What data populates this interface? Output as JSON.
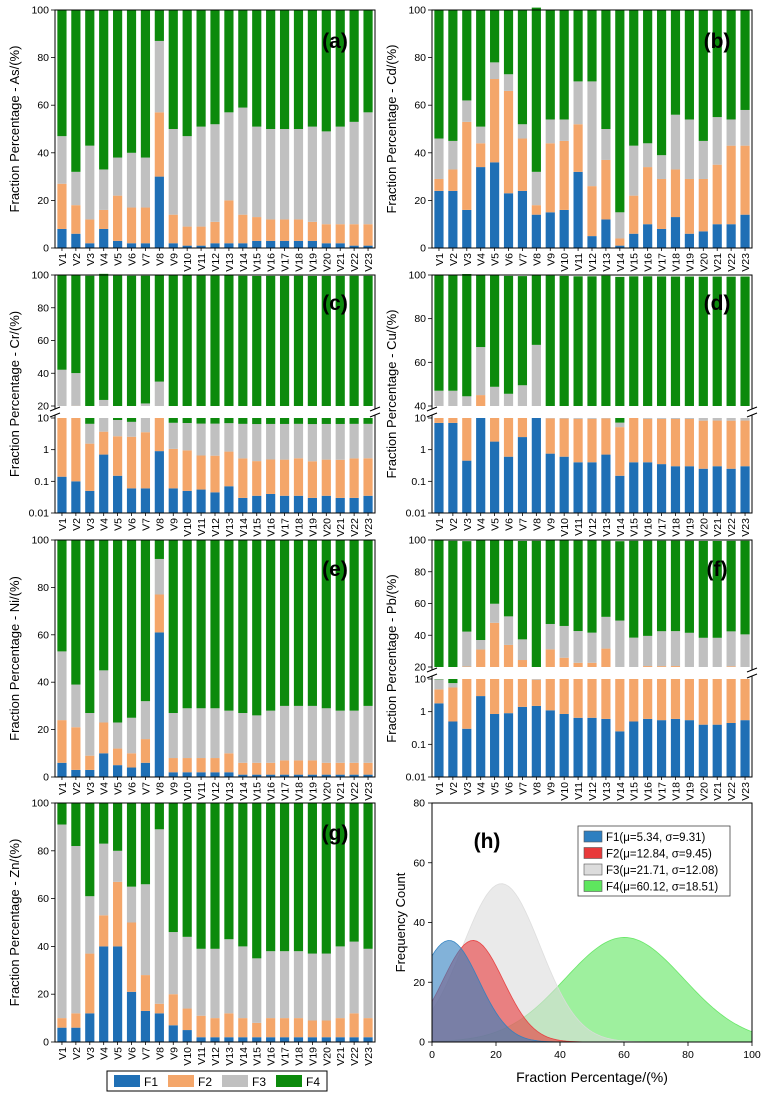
{
  "colors": {
    "F1": "#1f6fb5",
    "F2": "#f4a66a",
    "F3": "#c0c0c0",
    "F4": "#0c8a0c"
  },
  "legend": [
    "F1",
    "F2",
    "F3",
    "F4"
  ],
  "chart_data": [
    {
      "panel": "(a)",
      "type": "bar",
      "stacked": true,
      "ylabel": "Fraction Percentage - As/(%)",
      "ylim": [
        0,
        100
      ],
      "yticks": [
        0,
        20,
        40,
        60,
        80,
        100
      ],
      "categories": [
        "V1",
        "V2",
        "V3",
        "V4",
        "V5",
        "V6",
        "V7",
        "V8",
        "V9",
        "V10",
        "V11",
        "V12",
        "V13",
        "V14",
        "V15",
        "V16",
        "V17",
        "V18",
        "V19",
        "V20",
        "V21",
        "V22",
        "V23"
      ],
      "series": [
        {
          "name": "F1",
          "values": [
            8,
            6,
            2,
            8,
            3,
            2,
            2,
            30,
            2,
            1,
            1,
            2,
            2,
            2,
            3,
            3,
            3,
            3,
            3,
            2,
            2,
            1,
            1
          ]
        },
        {
          "name": "F2",
          "values": [
            19,
            12,
            10,
            8,
            19,
            15,
            15,
            27,
            12,
            8,
            8,
            9,
            18,
            12,
            10,
            9,
            9,
            9,
            8,
            8,
            8,
            9,
            9
          ]
        },
        {
          "name": "F3",
          "values": [
            20,
            14,
            31,
            17,
            16,
            23,
            21,
            30,
            36,
            38,
            42,
            41,
            37,
            45,
            38,
            38,
            38,
            38,
            40,
            39,
            41,
            43,
            47
          ]
        },
        {
          "name": "F4",
          "values": [
            53,
            68,
            57,
            67,
            62,
            60,
            62,
            13,
            50,
            53,
            49,
            48,
            43,
            41,
            49,
            50,
            50,
            50,
            49,
            51,
            49,
            47,
            43
          ]
        }
      ]
    },
    {
      "panel": "(b)",
      "type": "bar",
      "stacked": true,
      "ylabel": "Fraction Percentage - Cd/(%)",
      "ylim": [
        0,
        100
      ],
      "yticks": [
        0,
        20,
        40,
        60,
        80,
        100
      ],
      "categories": [
        "V1",
        "V2",
        "V3",
        "V4",
        "V5",
        "V6",
        "V7",
        "V8",
        "V9",
        "V10",
        "V11",
        "V12",
        "V13",
        "V14",
        "V15",
        "V16",
        "V17",
        "V18",
        "V19",
        "V20",
        "V21",
        "V22",
        "V23"
      ],
      "series": [
        {
          "name": "F1",
          "values": [
            24,
            24,
            16,
            34,
            36,
            23,
            24,
            14,
            15,
            16,
            32,
            5,
            12,
            1,
            6,
            10,
            8,
            13,
            6,
            7,
            10,
            10,
            14
          ]
        },
        {
          "name": "F2",
          "values": [
            5,
            9,
            37,
            10,
            35,
            43,
            22,
            4,
            29,
            29,
            20,
            21,
            25,
            3,
            16,
            24,
            21,
            20,
            23,
            22,
            25,
            33,
            29
          ]
        },
        {
          "name": "F3",
          "values": [
            17,
            12,
            9,
            7,
            7,
            7,
            6,
            14,
            10,
            9,
            18,
            44,
            13,
            11,
            21,
            10,
            10,
            23,
            25,
            16,
            20,
            11,
            15
          ]
        },
        {
          "name": "F4",
          "values": [
            54,
            55,
            38,
            49,
            22,
            27,
            48,
            69,
            46,
            46,
            30,
            30,
            50,
            85,
            57,
            56,
            61,
            44,
            46,
            55,
            45,
            46,
            42
          ]
        }
      ]
    },
    {
      "panel": "(c)",
      "type": "bar",
      "stacked": true,
      "ylabel": "Fraction Percentage - Cr/(%)",
      "yaxis": "broken: log 0.01–10 below, linear 20–100 above",
      "yticks": [
        0.01,
        0.1,
        1,
        10,
        20,
        40,
        60,
        80,
        100
      ],
      "categories": [
        "V1",
        "V2",
        "V3",
        "V4",
        "V5",
        "V6",
        "V7",
        "V8",
        "V9",
        "V10",
        "V11",
        "V12",
        "V13",
        "V14",
        "V15",
        "V16",
        "V17",
        "V18",
        "V19",
        "V20",
        "V21",
        "V22",
        "V23"
      ],
      "series": [
        {
          "name": "F1",
          "values": [
            0.14,
            0.1,
            0.05,
            0.7,
            0.15,
            0.06,
            0.06,
            0.9,
            0.06,
            0.05,
            0.055,
            0.045,
            0.07,
            0.03,
            0.035,
            0.04,
            0.035,
            0.035,
            0.03,
            0.035,
            0.03,
            0.03,
            0.035
          ]
        },
        {
          "name": "F2",
          "values": [
            14,
            20,
            1.5,
            3,
            2.5,
            2.5,
            3.5,
            14,
            1,
            0.9,
            0.6,
            0.6,
            0.8,
            0.5,
            0.4,
            0.45,
            0.45,
            0.5,
            0.4,
            0.45,
            0.45,
            0.5,
            0.5
          ]
        },
        {
          "name": "F3",
          "values": [
            28,
            20,
            5,
            20,
            6,
            5,
            18,
            20,
            6,
            6,
            6,
            6,
            6,
            6,
            6,
            6,
            6,
            6,
            6,
            6,
            6,
            6,
            6
          ]
        },
        {
          "name": "F4",
          "values": [
            58,
            60,
            93,
            77,
            91,
            92,
            78,
            65,
            93,
            93,
            93,
            93,
            93,
            93,
            93,
            93,
            93,
            93,
            93,
            93,
            93,
            93,
            93
          ]
        }
      ]
    },
    {
      "panel": "(d)",
      "type": "bar",
      "stacked": true,
      "ylabel": "Fraction Percentage - Cu/(%)",
      "yaxis": "broken: log 0.01–10 below, linear 40–100 above",
      "yticks": [
        0.01,
        0.1,
        1,
        10,
        40,
        60,
        80,
        100
      ],
      "categories": [
        "V1",
        "V2",
        "V3",
        "V4",
        "V5",
        "V6",
        "V7",
        "V8",
        "V9",
        "V10",
        "V11",
        "V12",
        "V13",
        "V14",
        "V15",
        "V16",
        "V17",
        "V18",
        "V19",
        "V20",
        "V21",
        "V22",
        "V23"
      ],
      "series": [
        {
          "name": "F1",
          "values": [
            7,
            7,
            0.45,
            15,
            1.8,
            0.6,
            2.5,
            30,
            0.75,
            0.6,
            0.4,
            0.4,
            0.7,
            0.15,
            0.4,
            0.4,
            0.35,
            0.3,
            0.3,
            0.25,
            0.3,
            0.25,
            0.3
          ]
        },
        {
          "name": "F2",
          "values": [
            20,
            20,
            30,
            30,
            30,
            30,
            30,
            10,
            9,
            9,
            9,
            9,
            9,
            5,
            10,
            9,
            9,
            9,
            9,
            8,
            8,
            8,
            8
          ]
        },
        {
          "name": "F3",
          "values": [
            20,
            20,
            14,
            22,
            17,
            15,
            17,
            28,
            2,
            2,
            2,
            2,
            2,
            2,
            2,
            2,
            2,
            2,
            2,
            2,
            2,
            2,
            2
          ]
        },
        {
          "name": "F4",
          "values": [
            53,
            53,
            56,
            33,
            51,
            54,
            50,
            32,
            88,
            88,
            88,
            88,
            88,
            92,
            87,
            88,
            88,
            88,
            88,
            89,
            89,
            89,
            89
          ]
        }
      ]
    },
    {
      "panel": "(e)",
      "type": "bar",
      "stacked": true,
      "ylabel": "Fraction Percentage - Ni/(%)",
      "ylim": [
        0,
        100
      ],
      "yticks": [
        0,
        20,
        40,
        60,
        80,
        100
      ],
      "categories": [
        "V1",
        "V2",
        "V3",
        "V4",
        "V5",
        "V6",
        "V7",
        "V8",
        "V9",
        "V10",
        "V11",
        "V12",
        "V13",
        "V14",
        "V15",
        "V16",
        "V17",
        "V18",
        "V19",
        "V20",
        "V21",
        "V22",
        "V23"
      ],
      "series": [
        {
          "name": "F1",
          "values": [
            6,
            3,
            3,
            10,
            5,
            4,
            6,
            61,
            2,
            2,
            2,
            2,
            2,
            1,
            1,
            1,
            1,
            1,
            1,
            1,
            1,
            1,
            1
          ]
        },
        {
          "name": "F2",
          "values": [
            18,
            18,
            6,
            13,
            7,
            6,
            10,
            16,
            6,
            6,
            6,
            6,
            8,
            5,
            5,
            5,
            6,
            6,
            6,
            5,
            5,
            5,
            5
          ]
        },
        {
          "name": "F3",
          "values": [
            29,
            18,
            18,
            22,
            11,
            15,
            16,
            15,
            19,
            21,
            21,
            21,
            18,
            21,
            20,
            22,
            23,
            23,
            23,
            23,
            22,
            22,
            24
          ]
        },
        {
          "name": "F4",
          "values": [
            47,
            61,
            73,
            55,
            77,
            75,
            68,
            8,
            73,
            71,
            71,
            71,
            72,
            73,
            74,
            72,
            70,
            70,
            70,
            71,
            72,
            72,
            70
          ]
        }
      ]
    },
    {
      "panel": "(f)",
      "type": "bar",
      "stacked": true,
      "ylabel": "Fraction Percentage - Pb/(%)",
      "yaxis": "broken: log 0.01–10 below, linear 20–100 above",
      "yticks": [
        0.01,
        0.1,
        1,
        10,
        20,
        40,
        60,
        80,
        100
      ],
      "categories": [
        "V1",
        "V2",
        "V3",
        "V4",
        "V5",
        "V6",
        "V7",
        "V8",
        "V9",
        "V10",
        "V11",
        "V12",
        "V13",
        "V14",
        "V15",
        "V16",
        "V17",
        "V18",
        "V19",
        "V20",
        "V21",
        "V22",
        "V23"
      ],
      "series": [
        {
          "name": "F1",
          "values": [
            1.8,
            0.5,
            0.3,
            3,
            0.85,
            0.9,
            1.4,
            1.5,
            1.1,
            0.85,
            0.65,
            0.65,
            0.6,
            0.25,
            0.5,
            0.6,
            0.55,
            0.6,
            0.55,
            0.4,
            0.4,
            0.45,
            0.55
          ]
        },
        {
          "name": "F2",
          "values": [
            3,
            5,
            20,
            28,
            47,
            33,
            23,
            8,
            30,
            25,
            22,
            22,
            31,
            12,
            19,
            20,
            20,
            20,
            19,
            19,
            19,
            20,
            19
          ]
        },
        {
          "name": "F3",
          "values": [
            5,
            2,
            22,
            6,
            12,
            18,
            13,
            2,
            16,
            20,
            20,
            19,
            20,
            37,
            19,
            19,
            22,
            22,
            22,
            19,
            19,
            22,
            21
          ]
        },
        {
          "name": "F4",
          "values": [
            90,
            92,
            57,
            63,
            40,
            48,
            62,
            88,
            53,
            54,
            57,
            58,
            48,
            50,
            61,
            60,
            57,
            57,
            58,
            61,
            61,
            57,
            59
          ]
        }
      ]
    },
    {
      "panel": "(g)",
      "type": "bar",
      "stacked": true,
      "ylabel": "Fraction Percentage - Zn/(%)",
      "ylim": [
        0,
        100
      ],
      "yticks": [
        0,
        20,
        40,
        60,
        80,
        100
      ],
      "categories": [
        "V1",
        "V2",
        "V3",
        "V4",
        "V5",
        "V6",
        "V7",
        "V8",
        "V9",
        "V10",
        "V11",
        "V12",
        "V13",
        "V14",
        "V15",
        "V16",
        "V17",
        "V18",
        "V19",
        "V20",
        "V21",
        "V22",
        "V23"
      ],
      "series": [
        {
          "name": "F1",
          "values": [
            6,
            6,
            12,
            40,
            40,
            21,
            13,
            12,
            7,
            5,
            2,
            2,
            2,
            2,
            2,
            2,
            2,
            2,
            2,
            2,
            2,
            2,
            2
          ]
        },
        {
          "name": "F2",
          "values": [
            4,
            6,
            25,
            13,
            27,
            29,
            15,
            4,
            13,
            9,
            9,
            8,
            10,
            8,
            6,
            8,
            8,
            8,
            7,
            7,
            8,
            10,
            8
          ]
        },
        {
          "name": "F3",
          "values": [
            81,
            70,
            24,
            30,
            13,
            15,
            38,
            73,
            26,
            30,
            28,
            29,
            31,
            30,
            27,
            28,
            28,
            28,
            28,
            28,
            30,
            30,
            29
          ]
        },
        {
          "name": "F4",
          "values": [
            9,
            18,
            39,
            17,
            20,
            35,
            34,
            11,
            54,
            56,
            61,
            61,
            57,
            60,
            65,
            62,
            62,
            62,
            63,
            63,
            60,
            58,
            61
          ]
        }
      ]
    },
    {
      "panel": "(h)",
      "type": "area",
      "xlabel": "Fraction Percentage/(%)",
      "ylabel": "Frequency Count",
      "xlim": [
        0,
        100
      ],
      "ylim": [
        0,
        80
      ],
      "xticks": [
        0,
        20,
        40,
        60,
        80,
        100
      ],
      "yticks": [
        0,
        20,
        40,
        60,
        80
      ],
      "series": [
        {
          "name": "F1(μ=5.34, σ=9.31)",
          "mu": 5.34,
          "sigma": 9.31,
          "peak": 34,
          "color": "#2e7fc0"
        },
        {
          "name": "F2(μ=12.84, σ=9.45)",
          "mu": 12.84,
          "sigma": 9.45,
          "peak": 34,
          "color": "#e8393a"
        },
        {
          "name": "F3(μ=21.71, σ=12.08)",
          "mu": 21.71,
          "sigma": 12.08,
          "peak": 53,
          "color": "#dcdcdc"
        },
        {
          "name": "F4(μ=60.12, σ=18.51)",
          "mu": 60.12,
          "sigma": 18.51,
          "peak": 35,
          "color": "#5ee65e"
        }
      ]
    }
  ]
}
